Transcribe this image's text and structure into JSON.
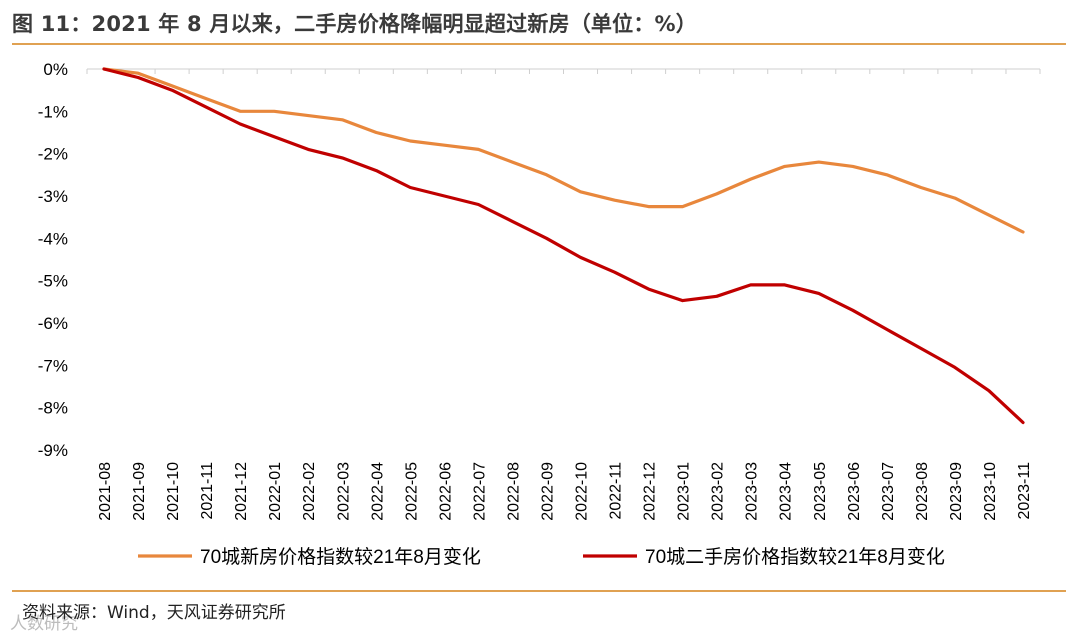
{
  "title": "图 11：2021 年 8 月以来，二手房价格降幅明显超过新房（单位：%）",
  "source": "资料来源：Wind，天风证券研究所",
  "watermark": "人数研究",
  "chart_data": {
    "type": "line",
    "categories": [
      "2021-08",
      "2021-09",
      "2021-10",
      "2021-11",
      "2021-12",
      "2022-01",
      "2022-02",
      "2022-03",
      "2022-04",
      "2022-05",
      "2022-06",
      "2022-07",
      "2022-08",
      "2022-09",
      "2022-10",
      "2022-11",
      "2022-12",
      "2023-01",
      "2023-02",
      "2023-03",
      "2023-04",
      "2023-05",
      "2023-06",
      "2023-07",
      "2023-08",
      "2023-09",
      "2023-10",
      "2023-11"
    ],
    "ylim": [
      -9,
      0
    ],
    "yticks": [
      0,
      -1,
      -2,
      -3,
      -4,
      -5,
      -6,
      -7,
      -8,
      -9
    ],
    "ytick_labels": [
      "0%",
      "-1%",
      "-2%",
      "-3%",
      "-4%",
      "-5%",
      "-6%",
      "-7%",
      "-8%",
      "-9%"
    ],
    "legend_position": "bottom",
    "series": [
      {
        "name": "70城新房价格指数较21年8月变化",
        "color": "#e8873c",
        "values": [
          0,
          -0.1,
          -0.4,
          -0.7,
          -1.0,
          -1.0,
          -1.1,
          -1.2,
          -1.5,
          -1.7,
          -1.8,
          -1.9,
          -2.2,
          -2.5,
          -2.9,
          -3.1,
          -3.25,
          -3.25,
          -2.95,
          -2.6,
          -2.3,
          -2.2,
          -2.3,
          -2.5,
          -2.8,
          -3.05,
          -3.45,
          -3.85
        ]
      },
      {
        "name": "70城二手房价格指数较21年8月变化",
        "color": "#c00000",
        "values": [
          0,
          -0.2,
          -0.5,
          -0.9,
          -1.3,
          -1.6,
          -1.9,
          -2.1,
          -2.4,
          -2.8,
          -3.0,
          -3.2,
          -3.6,
          -4.0,
          -4.45,
          -4.8,
          -5.2,
          -5.47,
          -5.37,
          -5.1,
          -5.1,
          -5.3,
          -5.7,
          -6.15,
          -6.6,
          -7.05,
          -7.6,
          -8.35
        ]
      }
    ]
  }
}
